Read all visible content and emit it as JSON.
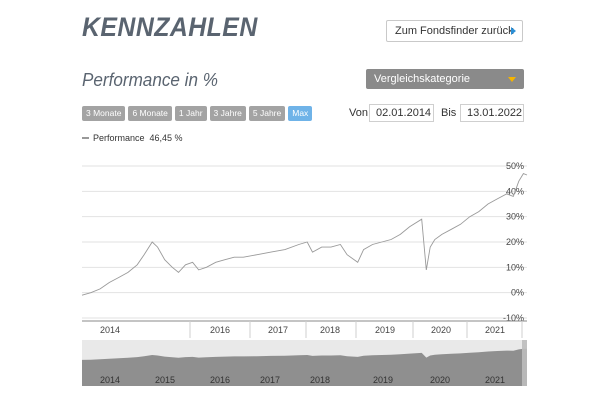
{
  "page": {
    "title": "KENNZAHLEN",
    "back_button": "Zum Fondsfinder zurück"
  },
  "section": {
    "title": "Performance in %",
    "compare_select": "Vergleichskategorie"
  },
  "range_buttons": [
    "3 Monate",
    "6 Monate",
    "1 Jahr",
    "3 Jahre",
    "5 Jahre",
    "Max"
  ],
  "range_active": "Max",
  "dates": {
    "from_label": "Von",
    "from_value": "02.01.2014",
    "to_label": "Bis",
    "to_value": "13.01.2022"
  },
  "legend": {
    "name": "Performance",
    "value": "46,45 %"
  },
  "chart_data": {
    "type": "line",
    "xlabel": "",
    "ylabel": "",
    "ylim": [
      -10,
      50
    ],
    "yticks": [
      "50%",
      "40%",
      "30%",
      "20%",
      "10%",
      "0%",
      "-10%"
    ],
    "x_year_labels": [
      "2014",
      "2016",
      "2017",
      "2018",
      "2019",
      "2020",
      "2021"
    ],
    "navigator_year_labels": [
      "2014",
      "2015",
      "2016",
      "2017",
      "2018",
      "2019",
      "2020",
      "2021"
    ],
    "grid": true,
    "series": [
      {
        "name": "Performance",
        "x": [
          "2014-01-02",
          "2014-03-01",
          "2014-05-01",
          "2014-07-01",
          "2014-09-01",
          "2014-11-01",
          "2015-01-01",
          "2015-02-15",
          "2015-04-10",
          "2015-05-15",
          "2015-07-01",
          "2015-08-20",
          "2015-09-30",
          "2015-11-15",
          "2016-01-01",
          "2016-02-10",
          "2016-04-01",
          "2016-06-01",
          "2016-08-01",
          "2016-10-01",
          "2016-12-01",
          "2017-03-01",
          "2017-06-01",
          "2017-09-01",
          "2017-12-01",
          "2018-01-25",
          "2018-03-01",
          "2018-05-01",
          "2018-07-01",
          "2018-09-01",
          "2018-10-15",
          "2018-12-24",
          "2019-02-01",
          "2019-04-01",
          "2019-06-01",
          "2019-08-01",
          "2019-10-01",
          "2019-12-01",
          "2020-02-19",
          "2020-03-20",
          "2020-04-15",
          "2020-05-15",
          "2020-07-01",
          "2020-09-01",
          "2020-11-01",
          "2021-01-01",
          "2021-03-01",
          "2021-05-01",
          "2021-07-01",
          "2021-09-01",
          "2021-10-15",
          "2021-11-20",
          "2021-12-20",
          "2022-01-13"
        ],
        "values": [
          -1,
          0,
          1.5,
          4,
          6,
          8,
          11,
          15,
          20,
          18,
          13,
          10,
          8,
          11,
          12,
          9,
          10,
          12,
          13,
          14,
          14,
          15,
          16,
          17,
          19,
          20,
          16,
          18,
          18,
          19,
          15,
          12,
          17,
          19,
          20,
          21,
          23,
          26,
          29,
          9,
          18,
          21,
          23,
          25,
          27,
          30,
          32,
          35,
          37,
          39,
          38,
          44,
          47,
          46.45
        ]
      }
    ]
  }
}
